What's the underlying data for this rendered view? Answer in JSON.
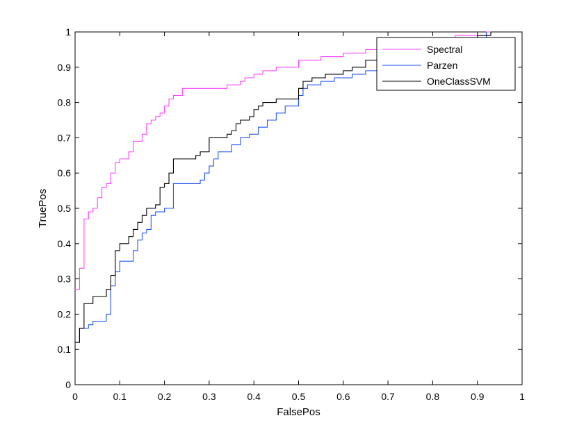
{
  "chart_data": {
    "type": "line",
    "title": "",
    "xlabel": "FalsePos",
    "ylabel": "TruePos",
    "xlim": [
      0,
      1
    ],
    "ylim": [
      0,
      1
    ],
    "xticks": [
      "0",
      "0.1",
      "0.2",
      "0.3",
      "0.4",
      "0.5",
      "0.6",
      "0.7",
      "0.8",
      "0.9",
      "1"
    ],
    "yticks": [
      "0",
      "0.1",
      "0.2",
      "0.3",
      "0.4",
      "0.5",
      "0.6",
      "0.7",
      "0.8",
      "0.9",
      "1"
    ],
    "grid": false,
    "legend_position": "top-right",
    "step": true,
    "series": [
      {
        "name": "Spectral",
        "color": "#ff44ff",
        "points": [
          [
            0,
            0.27
          ],
          [
            0.01,
            0.33
          ],
          [
            0.02,
            0.47
          ],
          [
            0.03,
            0.49
          ],
          [
            0.04,
            0.5
          ],
          [
            0.05,
            0.53
          ],
          [
            0.06,
            0.56
          ],
          [
            0.07,
            0.57
          ],
          [
            0.08,
            0.6
          ],
          [
            0.09,
            0.63
          ],
          [
            0.1,
            0.64
          ],
          [
            0.12,
            0.66
          ],
          [
            0.13,
            0.69
          ],
          [
            0.15,
            0.71
          ],
          [
            0.16,
            0.74
          ],
          [
            0.17,
            0.75
          ],
          [
            0.18,
            0.76
          ],
          [
            0.19,
            0.77
          ],
          [
            0.2,
            0.79
          ],
          [
            0.21,
            0.81
          ],
          [
            0.22,
            0.82
          ],
          [
            0.24,
            0.84
          ],
          [
            0.34,
            0.85
          ],
          [
            0.37,
            0.86
          ],
          [
            0.38,
            0.87
          ],
          [
            0.4,
            0.88
          ],
          [
            0.42,
            0.89
          ],
          [
            0.45,
            0.9
          ],
          [
            0.5,
            0.92
          ],
          [
            0.55,
            0.93
          ],
          [
            0.6,
            0.94
          ],
          [
            0.65,
            0.95
          ],
          [
            0.68,
            0.96
          ],
          [
            0.7,
            0.97
          ],
          [
            0.78,
            0.98
          ],
          [
            0.85,
            0.99
          ],
          [
            0.92,
            1.0
          ],
          [
            0.93,
            1.0
          ]
        ]
      },
      {
        "name": "Parzen",
        "color": "#2255ee",
        "points": [
          [
            0,
            0.12
          ],
          [
            0.01,
            0.16
          ],
          [
            0.03,
            0.17
          ],
          [
            0.04,
            0.18
          ],
          [
            0.07,
            0.2
          ],
          [
            0.08,
            0.28
          ],
          [
            0.09,
            0.32
          ],
          [
            0.1,
            0.35
          ],
          [
            0.13,
            0.38
          ],
          [
            0.14,
            0.41
          ],
          [
            0.15,
            0.43
          ],
          [
            0.16,
            0.44
          ],
          [
            0.17,
            0.48
          ],
          [
            0.18,
            0.49
          ],
          [
            0.2,
            0.5
          ],
          [
            0.22,
            0.57
          ],
          [
            0.28,
            0.58
          ],
          [
            0.29,
            0.6
          ],
          [
            0.3,
            0.62
          ],
          [
            0.31,
            0.64
          ],
          [
            0.32,
            0.66
          ],
          [
            0.35,
            0.68
          ],
          [
            0.37,
            0.7
          ],
          [
            0.39,
            0.71
          ],
          [
            0.41,
            0.73
          ],
          [
            0.43,
            0.75
          ],
          [
            0.45,
            0.77
          ],
          [
            0.47,
            0.79
          ],
          [
            0.5,
            0.82
          ],
          [
            0.51,
            0.84
          ],
          [
            0.52,
            0.85
          ],
          [
            0.55,
            0.86
          ],
          [
            0.58,
            0.87
          ],
          [
            0.62,
            0.88
          ],
          [
            0.65,
            0.89
          ],
          [
            0.7,
            0.9
          ],
          [
            0.8,
            0.91
          ],
          [
            0.86,
            0.92
          ],
          [
            0.88,
            0.95
          ],
          [
            0.92,
            1.0
          ]
        ]
      },
      {
        "name": "OneClassSVM",
        "color": "#000000",
        "points": [
          [
            0,
            0.12
          ],
          [
            0.01,
            0.16
          ],
          [
            0.02,
            0.23
          ],
          [
            0.04,
            0.25
          ],
          [
            0.07,
            0.27
          ],
          [
            0.08,
            0.31
          ],
          [
            0.09,
            0.38
          ],
          [
            0.1,
            0.4
          ],
          [
            0.12,
            0.42
          ],
          [
            0.13,
            0.44
          ],
          [
            0.14,
            0.46
          ],
          [
            0.15,
            0.48
          ],
          [
            0.16,
            0.5
          ],
          [
            0.18,
            0.51
          ],
          [
            0.19,
            0.56
          ],
          [
            0.2,
            0.57
          ],
          [
            0.21,
            0.6
          ],
          [
            0.22,
            0.64
          ],
          [
            0.27,
            0.65
          ],
          [
            0.28,
            0.66
          ],
          [
            0.3,
            0.7
          ],
          [
            0.34,
            0.71
          ],
          [
            0.35,
            0.72
          ],
          [
            0.36,
            0.74
          ],
          [
            0.37,
            0.75
          ],
          [
            0.39,
            0.76
          ],
          [
            0.4,
            0.78
          ],
          [
            0.41,
            0.79
          ],
          [
            0.42,
            0.8
          ],
          [
            0.45,
            0.81
          ],
          [
            0.5,
            0.84
          ],
          [
            0.51,
            0.86
          ],
          [
            0.53,
            0.87
          ],
          [
            0.56,
            0.88
          ],
          [
            0.6,
            0.89
          ],
          [
            0.62,
            0.9
          ],
          [
            0.65,
            0.92
          ],
          [
            0.75,
            0.93
          ],
          [
            0.78,
            0.94
          ],
          [
            0.86,
            0.96
          ],
          [
            0.9,
            0.99
          ],
          [
            0.93,
            1.0
          ]
        ]
      }
    ]
  }
}
